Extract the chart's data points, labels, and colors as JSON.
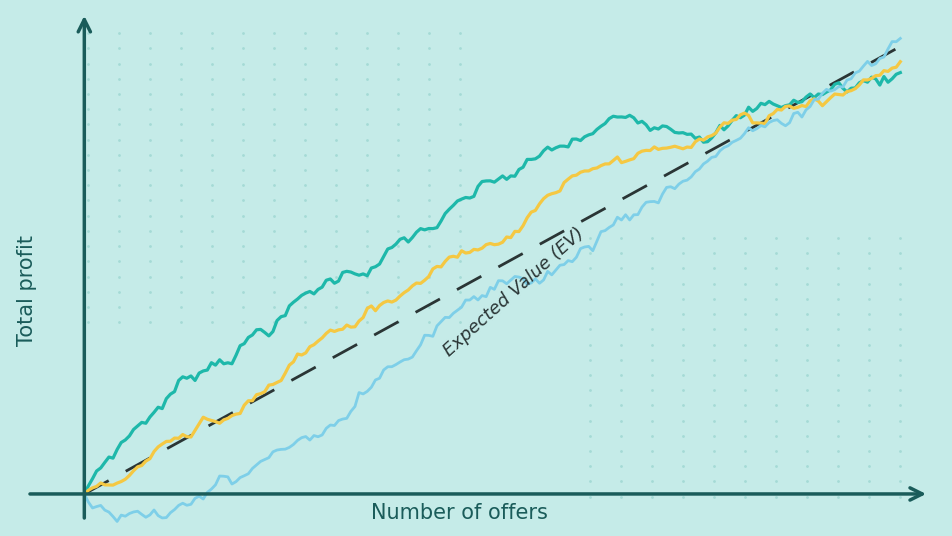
{
  "background_color": "#c5ebe8",
  "dot_color": "#9dd6d1",
  "axis_color": "#1a5c5a",
  "dashed_line_color": "#2a3535",
  "line1_color": "#1eb8aa",
  "line2_color": "#f5c842",
  "line3_color": "#7ecfe8",
  "xlabel": "Number of offers",
  "ylabel": "Total profit",
  "ev_label": "Expected Value (EV)",
  "xlabel_fontsize": 15,
  "ylabel_fontsize": 15,
  "ev_label_fontsize": 13
}
